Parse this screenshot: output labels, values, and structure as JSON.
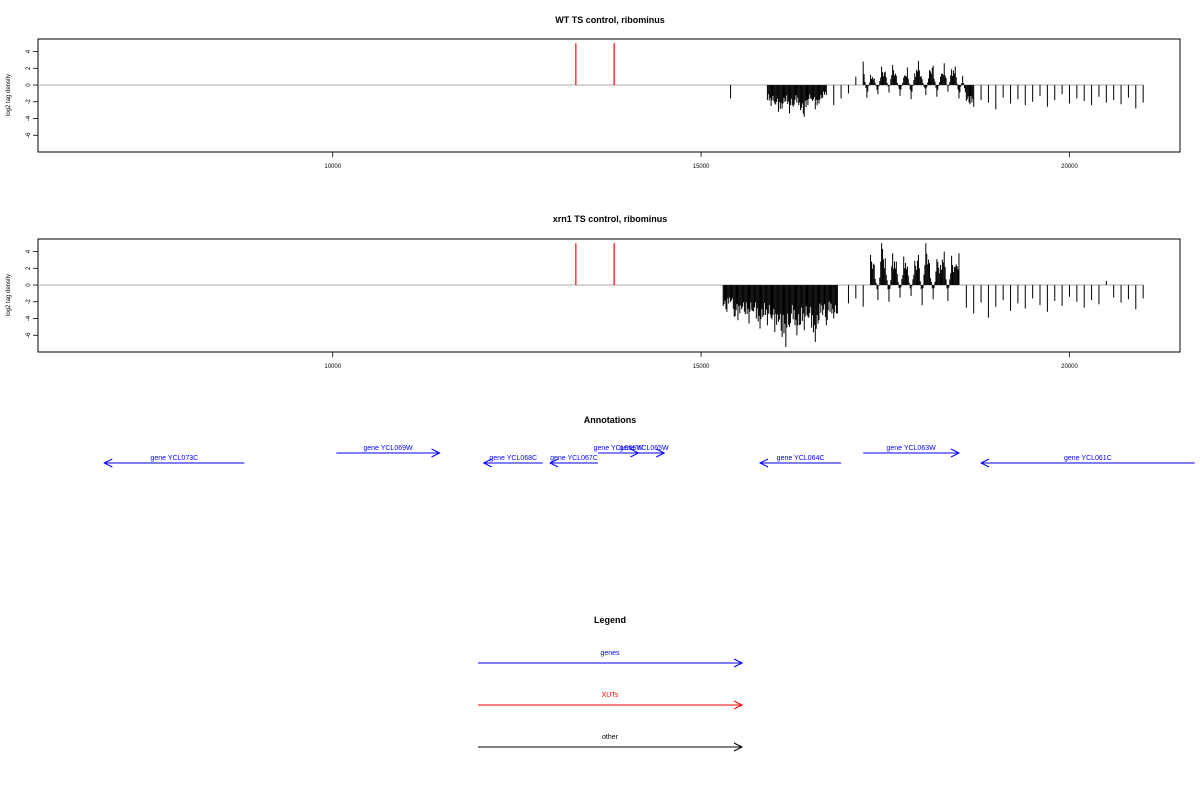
{
  "chart_data": [
    {
      "type": "bar",
      "title": "WT TS control, ribominus",
      "ylabel": "log2 tag density",
      "xlabel": "",
      "xlim": [
        6000,
        21500
      ],
      "ylim": [
        -8,
        5.5
      ],
      "x_ticks": [
        10000,
        15000,
        20000
      ],
      "y_ticks": [
        4,
        2,
        0,
        -2,
        -4,
        -6
      ],
      "baseline": {
        "from": 6000,
        "to": 21000,
        "y": 0,
        "color": "#aaaaaa"
      },
      "xut_markers": {
        "x": [
          13300,
          13820
        ],
        "y_top": 5,
        "color": "#ff0000"
      },
      "grid": false,
      "series": [
        {
          "values_x": [
            15400,
            15900,
            15950,
            16000,
            16050,
            16100,
            16150,
            16200,
            16250,
            16300,
            16350,
            16400,
            16450,
            16500,
            16550,
            16600,
            16650,
            16700,
            16800,
            16900,
            17000,
            17100,
            17200,
            17250,
            17300,
            17350,
            17400,
            17450,
            17500,
            17550,
            17600,
            17650,
            17700,
            17750,
            17800,
            17850,
            17900,
            17950,
            18000,
            18050,
            18100,
            18150,
            18200,
            18250,
            18300,
            18350,
            18400,
            18450,
            18500,
            18550,
            18600,
            18650,
            18700,
            18800,
            18900,
            19000,
            19100,
            19200,
            19300,
            19400,
            19500,
            19600,
            19700,
            19800,
            19900,
            20000,
            20100,
            20200,
            20300,
            20400,
            20500,
            20600,
            20700,
            20800,
            20900,
            21000
          ],
          "values_y": [
            -1.6,
            -1.8,
            -2.5,
            -2.2,
            -3.2,
            -2.8,
            -1.9,
            -3.4,
            -2.6,
            -2.1,
            -3.0,
            -3.8,
            -2.4,
            -1.7,
            -2.9,
            -2.2,
            -1.5,
            -1.2,
            -2.4,
            -1.6,
            -1.0,
            1.0,
            2.8,
            -1.5,
            1.2,
            0.8,
            -1.1,
            2.2,
            1.6,
            -0.9,
            2.4,
            1.1,
            -1.3,
            0.9,
            2.1,
            -1.7,
            1.4,
            2.9,
            0.7,
            -1.2,
            1.8,
            2.3,
            -1.4,
            1.0,
            2.6,
            -0.8,
            1.9,
            2.2,
            -1.6,
            1.1,
            -1.9,
            -2.3,
            -2.6,
            -1.8,
            -2.1,
            -2.9,
            -1.5,
            -2.2,
            -1.7,
            -2.4,
            -2.0,
            -1.3,
            -2.6,
            -1.8,
            -1.1,
            -2.2,
            -1.6,
            -1.9,
            -2.4,
            -1.4,
            -2.1,
            -1.8,
            -2.3,
            -1.5,
            -2.8,
            -2.1
          ]
        }
      ]
    },
    {
      "type": "bar",
      "title": "xrn1 TS control, ribominus",
      "ylabel": "log2 tag density",
      "xlabel": "",
      "xlim": [
        6000,
        21500
      ],
      "ylim": [
        -8,
        5.5
      ],
      "x_ticks": [
        10000,
        15000,
        20000
      ],
      "y_ticks": [
        4,
        2,
        0,
        -2,
        -4,
        -6
      ],
      "baseline": {
        "from": 6000,
        "to": 21000,
        "y": 0,
        "color": "#aaaaaa"
      },
      "xut_markers": {
        "x": [
          13300,
          13820
        ],
        "y_top": 5,
        "color": "#ff0000"
      },
      "grid": false,
      "series": [
        {
          "values_x": [
            15300,
            15350,
            15400,
            15450,
            15500,
            15550,
            15600,
            15650,
            15700,
            15750,
            15800,
            15850,
            15900,
            15950,
            16000,
            16050,
            16100,
            16150,
            16200,
            16250,
            16300,
            16350,
            16400,
            16450,
            16500,
            16550,
            16600,
            16650,
            16700,
            16750,
            16800,
            16850,
            17000,
            17100,
            17200,
            17300,
            17350,
            17400,
            17450,
            17500,
            17550,
            17600,
            17650,
            17700,
            17750,
            17800,
            17850,
            17900,
            17950,
            18000,
            18050,
            18100,
            18150,
            18200,
            18250,
            18300,
            18350,
            18400,
            18450,
            18500,
            18600,
            18700,
            18800,
            18900,
            19000,
            19100,
            19200,
            19300,
            19400,
            19500,
            19600,
            19700,
            19800,
            19900,
            20000,
            20100,
            20200,
            20300,
            20400,
            20500,
            20600,
            20700,
            20800,
            20900,
            21000
          ],
          "values_y": [
            -2.5,
            -3.2,
            -2.0,
            -3.8,
            -4.2,
            -2.9,
            -3.5,
            -4.6,
            -3.1,
            -4.0,
            -5.2,
            -3.6,
            -4.8,
            -3.9,
            -5.6,
            -4.4,
            -6.2,
            -7.4,
            -5.0,
            -4.1,
            -6.0,
            -4.7,
            -5.4,
            -3.8,
            -5.1,
            -6.8,
            -4.2,
            -3.6,
            -4.8,
            -3.2,
            -4.0,
            -3.4,
            -2.2,
            -1.6,
            -2.6,
            3.6,
            2.4,
            -1.8,
            5.0,
            3.2,
            -2.0,
            3.8,
            2.8,
            -1.5,
            3.4,
            2.2,
            -1.3,
            2.9,
            3.6,
            -2.4,
            5.0,
            2.6,
            -1.7,
            3.1,
            2.4,
            4.0,
            -1.9,
            3.5,
            2.2,
            3.8,
            -2.7,
            -3.4,
            -2.1,
            -3.9,
            -2.6,
            -1.8,
            -3.1,
            -2.2,
            -2.8,
            -1.6,
            -2.4,
            -3.2,
            -1.9,
            -2.5,
            -1.4,
            -2.0,
            -2.7,
            -1.8,
            -2.3,
            0.5,
            -1.5,
            -2.1,
            -1.7,
            -2.9,
            -1.6
          ]
        }
      ]
    }
  ],
  "annotations": {
    "title": "Annotations",
    "genes": [
      {
        "label": "gene YCL073C",
        "direction": "left",
        "start": 6900,
        "end": 8800,
        "track": 1,
        "color": "#0000ff"
      },
      {
        "label": "gene YCL069W",
        "direction": "right",
        "start": 10050,
        "end": 11450,
        "track": 0,
        "color": "#0000ff"
      },
      {
        "label": "gene YCL068C",
        "direction": "left",
        "start": 12050,
        "end": 12850,
        "track": 1,
        "color": "#0000ff"
      },
      {
        "label": "gene YCL067C",
        "direction": "left",
        "start": 12950,
        "end": 13600,
        "track": 1,
        "color": "#0000ff"
      },
      {
        "label": "gene YCL066W",
        "direction": "right",
        "start": 13600,
        "end": 14150,
        "track": 0,
        "color": "#0000ff"
      },
      {
        "label": "gene YCL065W",
        "direction": "right",
        "start": 13950,
        "end": 14500,
        "track": 0,
        "color": "#0000ff"
      },
      {
        "label": "gene YCL064C",
        "direction": "left",
        "start": 15800,
        "end": 16900,
        "track": 1,
        "color": "#0000ff"
      },
      {
        "label": "gene YCL063W",
        "direction": "right",
        "start": 17200,
        "end": 18500,
        "track": 0,
        "color": "#0000ff"
      },
      {
        "label": "gene YCL061C",
        "direction": "left",
        "start": 18800,
        "end": 21700,
        "track": 1,
        "color": "#0000ff"
      }
    ]
  },
  "legend": {
    "title": "Legend",
    "items": [
      {
        "label": "genes",
        "color": "#0000ff"
      },
      {
        "label": "XUTs",
        "color": "#ff0000"
      },
      {
        "label": "other",
        "color": "#000000"
      }
    ]
  }
}
